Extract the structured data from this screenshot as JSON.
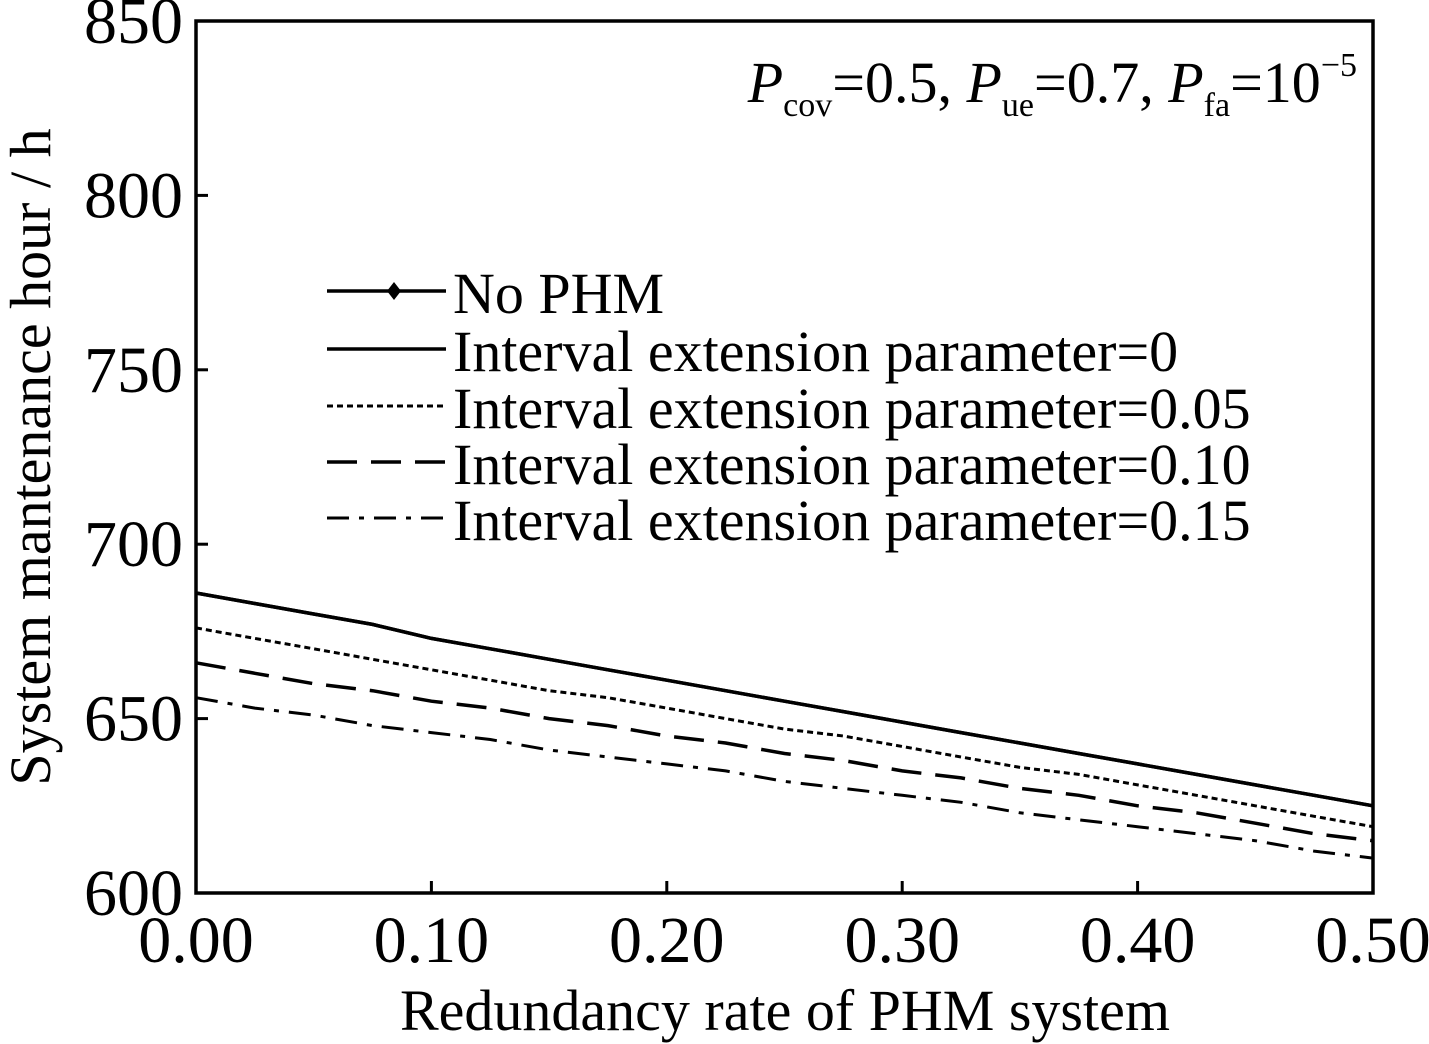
{
  "chart_data": {
    "type": "line",
    "xlabel": "Redundancy rate of PHM system",
    "ylabel": "System mantenance hour / h",
    "xlim": [
      0.0,
      0.5
    ],
    "ylim": [
      600,
      850
    ],
    "xticks": [
      "0.00",
      "0.10",
      "0.20",
      "0.30",
      "0.40",
      "0.50"
    ],
    "yticks": [
      "600",
      "650",
      "700",
      "750",
      "800",
      "850"
    ],
    "grid": false,
    "legend_position": "center-right",
    "annotation": {
      "P1": "P",
      "s1": "cov",
      "t1": "=0.5, ",
      "P2": "P",
      "s2": "ue",
      "t2": "=0.7, ",
      "P3": "P",
      "s3": "fa",
      "t3": "=10",
      "exp": "−5"
    },
    "x": [
      0.0,
      0.025,
      0.05,
      0.075,
      0.1,
      0.125,
      0.15,
      0.175,
      0.2,
      0.225,
      0.25,
      0.275,
      0.3,
      0.325,
      0.35,
      0.375,
      0.4,
      0.425,
      0.45,
      0.475,
      0.5
    ],
    "series": [
      {
        "name": "No PHM",
        "style": "solid-marker",
        "values": [
          686,
          683,
          680,
          677,
          673,
          670,
          667,
          664,
          661,
          658,
          655,
          652,
          649,
          646,
          643,
          640,
          637,
          634,
          631,
          628,
          625
        ]
      },
      {
        "name": "Interval extension parameter=0",
        "style": "solid",
        "values": [
          686,
          683,
          680,
          677,
          673,
          670,
          667,
          664,
          661,
          658,
          655,
          652,
          649,
          646,
          643,
          640,
          637,
          634,
          631,
          628,
          625
        ]
      },
      {
        "name": "Interval extension parameter=0.05",
        "style": "dotted",
        "values": [
          676,
          673,
          670,
          667,
          664,
          661,
          658,
          656,
          653,
          650,
          647,
          645,
          642,
          639,
          636,
          634,
          631,
          628,
          625,
          622,
          619
        ]
      },
      {
        "name": "Interval extension parameter=0.10",
        "style": "dashed",
        "values": [
          666,
          663,
          660,
          658,
          655,
          653,
          650,
          648,
          645,
          643,
          640,
          638,
          635,
          633,
          630,
          628,
          625,
          623,
          620,
          617,
          615
        ]
      },
      {
        "name": "Interval extension parameter=0.15",
        "style": "dashdot",
        "values": [
          656,
          653,
          651,
          648,
          646,
          644,
          641,
          639,
          637,
          635,
          632,
          630,
          628,
          626,
          623,
          621,
          619,
          617,
          615,
          612,
          610
        ]
      }
    ]
  }
}
